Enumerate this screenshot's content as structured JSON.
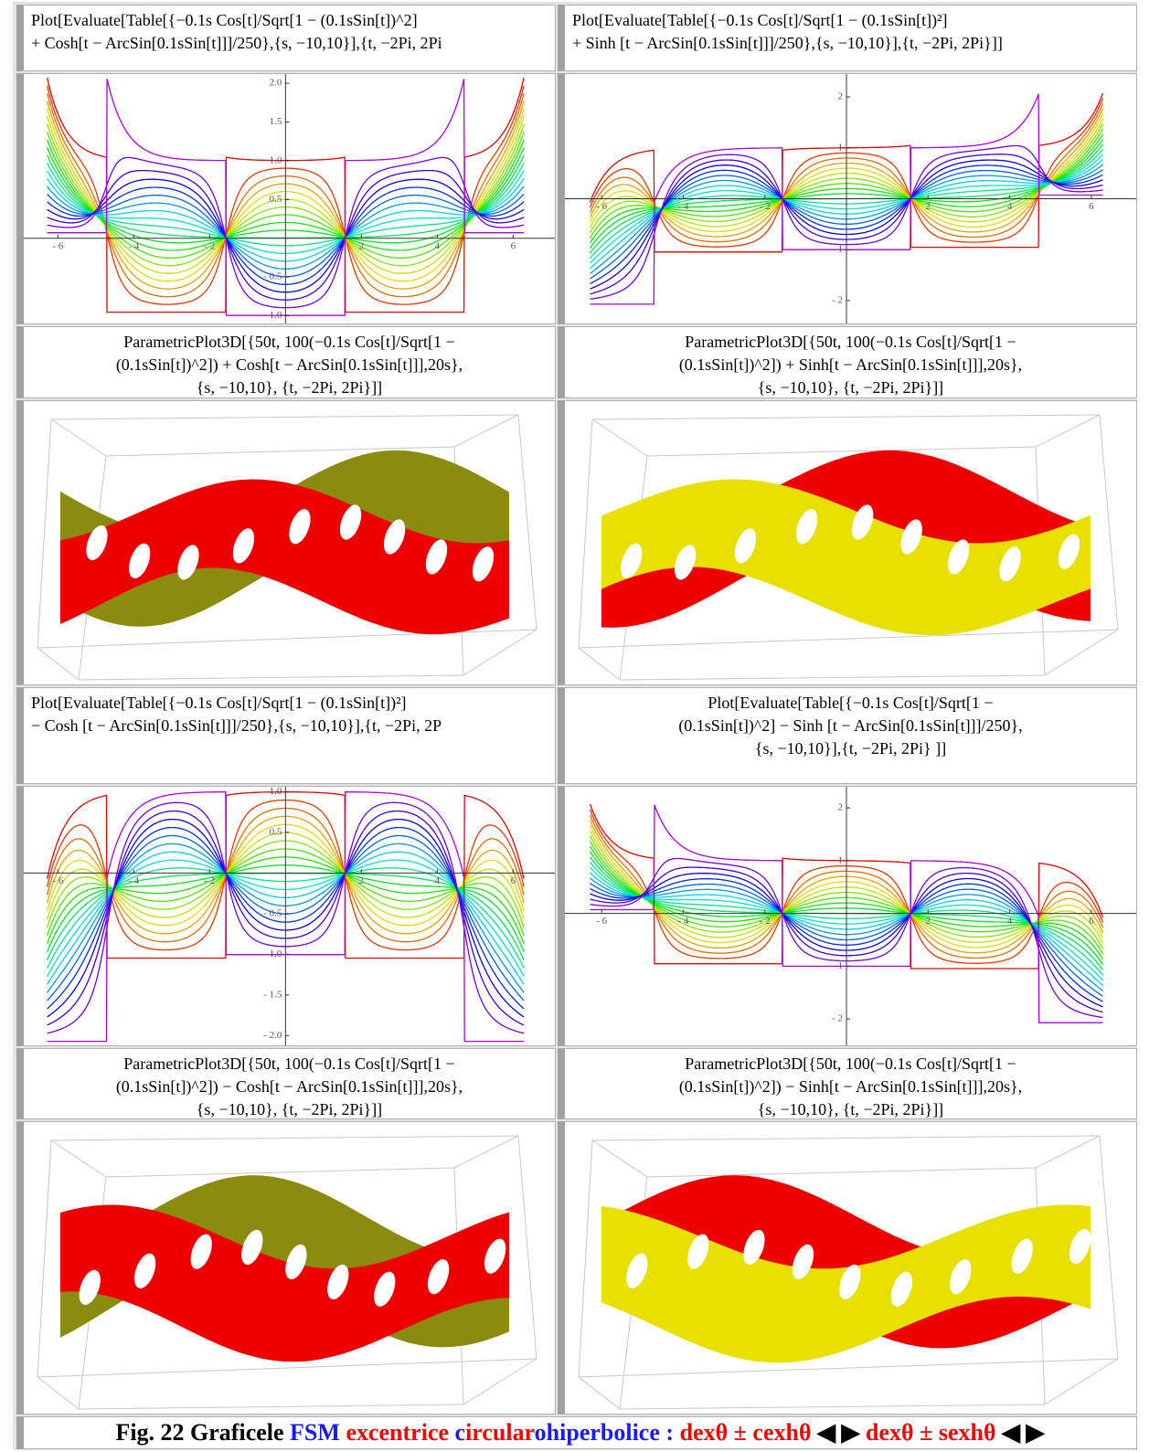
{
  "formulas": [
    {
      "lines": [
        "Plot[Evaluate[Table[{−0.1s Cos[t]/Sqrt[1 − (0.1sSin[t])^2]",
        "+ Cosh[t − ArcSin[0.1sSin[t]]]/250},{s, −10,10}],{t, −2Pi, 2Pi"
      ]
    },
    {
      "lines": [
        "Plot[Evaluate[Table[{−0.1s Cos[t]/Sqrt[1 − (0.1sSin[t])²]",
        "+ Sinh [t − ArcSin[0.1sSin[t]]]/250},{s, −10,10}],{t, −2Pi, 2Pi}]]"
      ]
    },
    {
      "lines": [
        "ParametricPlot3D[{50t, 100(−0.1s Cos[t]/Sqrt[1 −",
        "(0.1sSin[t])^2]) + Cosh[t − ArcSin[0.1sSin[t]]],20s},",
        "{s, −10,10}, {t, −2Pi, 2Pi}]]"
      ]
    },
    {
      "lines": [
        "ParametricPlot3D[{50t, 100(−0.1s Cos[t]/Sqrt[1 −",
        "(0.1sSin[t])^2]) + Sinh[t − ArcSin[0.1sSin[t]]],20s},",
        "{s, −10,10}, {t, −2Pi, 2Pi}]]"
      ]
    },
    {
      "lines": [
        "Plot[Evaluate[Table[{−0.1s Cos[t]/Sqrt[1 − (0.1sSin[t])²]",
        "− Cosh [t − ArcSin[0.1sSin[t]]]/250},{s, −10,10}],{t, −2Pi, 2P"
      ]
    },
    {
      "lines": [
        "Plot[Evaluate[Table[{−0.1s Cos[t]/Sqrt[1 −",
        "(0.1sSin[t])^2] − Sinh [t − ArcSin[0.1sSin[t]]]/250},",
        "{s, −10,10}],{t, −2Pi, 2Pi} ]]"
      ]
    },
    {
      "lines": [
        "ParametricPlot3D[{50t, 100(−0.1s Cos[t]/Sqrt[1 −",
        "(0.1sSin[t])^2]) − Cosh[t − ArcSin[0.1sSin[t]]],20s},",
        "{s, −10,10}, {t, −2Pi, 2Pi}]]"
      ]
    },
    {
      "lines": [
        "ParametricPlot3D[{50t, 100(−0.1s Cos[t]/Sqrt[1 −",
        "(0.1sSin[t])^2]) − Sinh[t − ArcSin[0.1sSin[t]]],20s},",
        "{s, −10,10}, {t, −2Pi, 2Pi}]]"
      ]
    }
  ],
  "plots": [
    {
      "type": "line",
      "xlim": [
        -6.9,
        7.1
      ],
      "ylim": [
        -1.1,
        2.12
      ],
      "xticks": [
        {
          "value": -6,
          "label": "- 6"
        },
        {
          "value": -4,
          "label": "- 4"
        },
        {
          "value": -2,
          "label": "- 2"
        },
        2,
        4,
        6
      ],
      "yticks": [
        {
          "value": -1,
          "label": "- 1.0"
        },
        {
          "value": -0.5,
          "label": "- 0.5"
        },
        0.5,
        {
          "value": 1,
          "label": "1.0"
        },
        1.5,
        {
          "value": 2,
          "label": "2.0"
        }
      ]
    },
    {
      "type": "line",
      "xlim": [
        -6.9,
        7.1
      ],
      "ylim": [
        -2.45,
        2.45
      ],
      "xticks": [
        {
          "value": -6,
          "label": "- 6"
        },
        {
          "value": -4,
          "label": "- 4"
        },
        {
          "value": -2,
          "label": "- 2"
        },
        2,
        4,
        6
      ],
      "yticks": [
        {
          "value": -2,
          "label": "- 2"
        },
        {
          "value": -1,
          "label": "- 1"
        },
        1,
        2
      ]
    },
    {
      "type": "line",
      "xlim": [
        -6.9,
        7.1
      ],
      "ylim": [
        -2.12,
        1.06
      ],
      "xticks": [
        {
          "value": -6,
          "label": "- 6"
        },
        {
          "value": -4,
          "label": "- 4"
        },
        {
          "value": -2,
          "label": "- 2"
        },
        2,
        4,
        6
      ],
      "yticks": [
        {
          "value": -2,
          "label": "- 2.0"
        },
        {
          "value": -1.5,
          "label": "- 1.5"
        },
        {
          "value": -1,
          "label": "- 1.0"
        },
        {
          "value": -0.5,
          "label": "- 0.5"
        },
        0.5,
        {
          "value": 1,
          "label": "1.0"
        }
      ]
    },
    {
      "type": "line",
      "xlim": [
        -6.9,
        7.1
      ],
      "ylim": [
        -2.5,
        2.4
      ],
      "xticks": [
        {
          "value": -6,
          "label": "- 6"
        },
        {
          "value": -4,
          "label": "- 4"
        },
        {
          "value": -2,
          "label": "- 2"
        },
        2,
        4,
        6
      ],
      "yticks": [
        {
          "value": -2,
          "label": "- 2"
        },
        {
          "value": -1,
          "label": "- 1"
        },
        1,
        2
      ]
    }
  ],
  "caption": {
    "parts": [
      {
        "text": "Fig. 22 Graficele ",
        "color": "#000000"
      },
      {
        "text": "FSM",
        "color": "#1a1aff"
      },
      {
        "text": " excentrice ",
        "color": "#ff0000"
      },
      {
        "text": "c",
        "color": "#1a1aff"
      },
      {
        "text": "ircular",
        "color": "#ff0000"
      },
      {
        "text": "ohiperbolice",
        "color": "#1a1aff"
      },
      {
        "text": " : ",
        "color": "#1a1aff"
      },
      {
        "text": "dexθ ± cexhθ",
        "color": "#ff0000"
      },
      {
        "text": " ◀ ▶ ",
        "color": "#000000"
      },
      {
        "text": "dexθ ± sexhθ",
        "color": "#ff0000"
      },
      {
        "text": " ◀ ▶",
        "color": "#000000"
      }
    ]
  }
}
